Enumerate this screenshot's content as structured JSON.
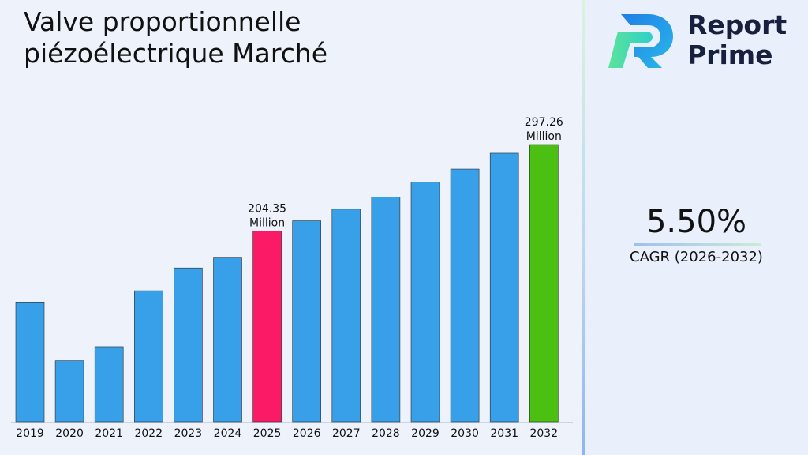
{
  "chart_data": {
    "type": "bar",
    "title": "Valve proportionnelle piézoélectrique Marché",
    "categories": [
      "2019",
      "2020",
      "2021",
      "2022",
      "2023",
      "2024",
      "2025",
      "2026",
      "2027",
      "2028",
      "2029",
      "2030",
      "2031",
      "2032"
    ],
    "values": [
      128.5,
      65.5,
      80.5,
      140.5,
      165,
      176.5,
      204.35,
      215.5,
      228,
      241,
      257,
      271,
      288,
      297.26
    ],
    "ylim": [
      0,
      310
    ],
    "bar_colors": [
      "#38a0e9",
      "#38a0e9",
      "#38a0e9",
      "#38a0e9",
      "#38a0e9",
      "#38a0e9",
      "#fb1a66",
      "#38a0e9",
      "#38a0e9",
      "#38a0e9",
      "#38a0e9",
      "#38a0e9",
      "#38a0e9",
      "#4bc012"
    ],
    "data_labels": [
      {
        "index": 6,
        "value": "204.35",
        "unit": "Million"
      },
      {
        "index": 13,
        "value": "297.26",
        "unit": "Million"
      }
    ],
    "xlabel": "",
    "ylabel": "",
    "grid": false
  },
  "brand": {
    "line1": "Report",
    "line2": "Prime"
  },
  "cagr": {
    "value": "5.50%",
    "label": "CAGR (2026-2032)"
  },
  "colors": {
    "accent_blue": "#38a0e9",
    "highlight_pink": "#fb1a66",
    "highlight_green": "#4bc012"
  }
}
